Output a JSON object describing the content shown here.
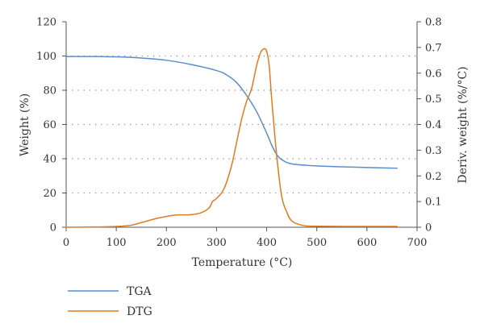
{
  "chart_data": {
    "type": "line",
    "xlabel": "Temperature (°C)",
    "ylabel_left": "Weight (%)",
    "ylabel_right": "Deriv. weight (%/°C)",
    "xlim": [
      0,
      700
    ],
    "ylim_left": [
      0,
      120
    ],
    "ylim_right": [
      0,
      0.8
    ],
    "x_ticks": [
      0,
      100,
      200,
      300,
      400,
      500,
      600,
      700
    ],
    "y_left_ticks": [
      0,
      20,
      40,
      60,
      80,
      100,
      120
    ],
    "y_right_ticks": [
      0,
      0.1,
      0.2,
      0.3,
      0.4,
      0.5,
      0.6,
      0.7,
      0.8
    ],
    "grid": "dotted horizontal at left-axis ticks 20-100",
    "legend_position": "bottom-left",
    "colors": {
      "TGA": "#5b8ec9",
      "DTG": "#e07b1f"
    },
    "series": [
      {
        "name": "TGA",
        "axis": "left",
        "points": [
          [
            0,
            99.7
          ],
          [
            50,
            99.7
          ],
          [
            100,
            99.5
          ],
          [
            150,
            98.8
          ],
          [
            200,
            97.5
          ],
          [
            250,
            95.0
          ],
          [
            300,
            91.5
          ],
          [
            320,
            89.0
          ],
          [
            340,
            84.5
          ],
          [
            360,
            77.0
          ],
          [
            380,
            67.5
          ],
          [
            400,
            55.0
          ],
          [
            410,
            48.0
          ],
          [
            420,
            42.5
          ],
          [
            430,
            39.5
          ],
          [
            450,
            37.0
          ],
          [
            500,
            35.8
          ],
          [
            550,
            35.3
          ],
          [
            600,
            34.9
          ],
          [
            660,
            34.5
          ]
        ]
      },
      {
        "name": "DTG",
        "axis": "right",
        "points": [
          [
            0,
            0.0
          ],
          [
            50,
            0.001
          ],
          [
            100,
            0.003
          ],
          [
            130,
            0.008
          ],
          [
            150,
            0.018
          ],
          [
            180,
            0.034
          ],
          [
            200,
            0.042
          ],
          [
            220,
            0.048
          ],
          [
            250,
            0.049
          ],
          [
            270,
            0.057
          ],
          [
            285,
            0.075
          ],
          [
            292,
            0.1
          ],
          [
            300,
            0.112
          ],
          [
            315,
            0.15
          ],
          [
            330,
            0.24
          ],
          [
            340,
            0.33
          ],
          [
            350,
            0.42
          ],
          [
            360,
            0.49
          ],
          [
            370,
            0.54
          ],
          [
            380,
            0.63
          ],
          [
            388,
            0.68
          ],
          [
            395,
            0.695
          ],
          [
            400,
            0.685
          ],
          [
            405,
            0.63
          ],
          [
            410,
            0.5
          ],
          [
            420,
            0.28
          ],
          [
            430,
            0.12
          ],
          [
            440,
            0.06
          ],
          [
            450,
            0.025
          ],
          [
            470,
            0.008
          ],
          [
            500,
            0.004
          ],
          [
            600,
            0.003
          ],
          [
            660,
            0.003
          ]
        ]
      }
    ]
  }
}
